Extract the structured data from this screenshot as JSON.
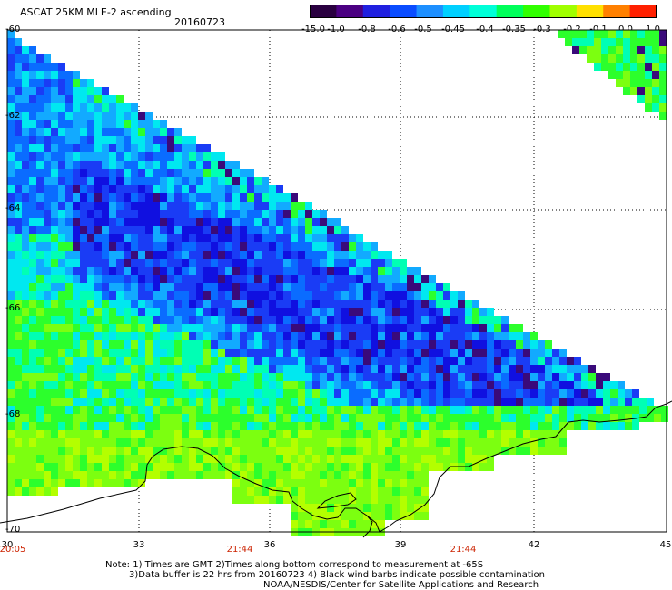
{
  "header": {
    "title": "ASCAT 25KM MLE-2 ascending",
    "date": "20160723"
  },
  "colorbar": {
    "labels": [
      "-15.0",
      "-1.0",
      "-0.8",
      "-0.6",
      "-0.5",
      "-0.45",
      "-0.4",
      "-0.35",
      "-0.3",
      "-0.2",
      "-0.1",
      "0.0",
      "1.0"
    ],
    "colors": [
      "#2a0040",
      "#4b0082",
      "#2020e0",
      "#0a4cff",
      "#1d8fff",
      "#00d0ff",
      "#00ffd8",
      "#00ff5a",
      "#30ff00",
      "#a0ff00",
      "#ffe000",
      "#ff8000",
      "#ff2000"
    ]
  },
  "map": {
    "lat_labels": [
      "-60",
      "-62",
      "-64",
      "-66",
      "-68",
      "-70"
    ],
    "lon_labels": [
      "30",
      "33",
      "36",
      "39",
      "42",
      "45"
    ],
    "time_labels": [
      "20:05",
      "21:44",
      "21:44"
    ],
    "colors": {
      "deep": "#3a0a7a",
      "dark_blue": "#1010e0",
      "blue": "#1a3cf5",
      "medium_blue": "#0a6cff",
      "light_blue": "#12aaff",
      "cyan": "#00e8f0",
      "aqua": "#00ffb4",
      "green": "#2cff2c",
      "lime": "#7cff10",
      "yellow_green": "#b4ff00"
    }
  },
  "notes": {
    "line1": "Note: 1) Times are GMT 2)Times along bottom correspond to measurement at -65S",
    "line2": "3)Data buffer is 22 hrs from 20160723 4) Black wind barbs indicate possible contamination",
    "line3": "NOAA/NESDIS/Center for Satellite Applications and Research"
  }
}
